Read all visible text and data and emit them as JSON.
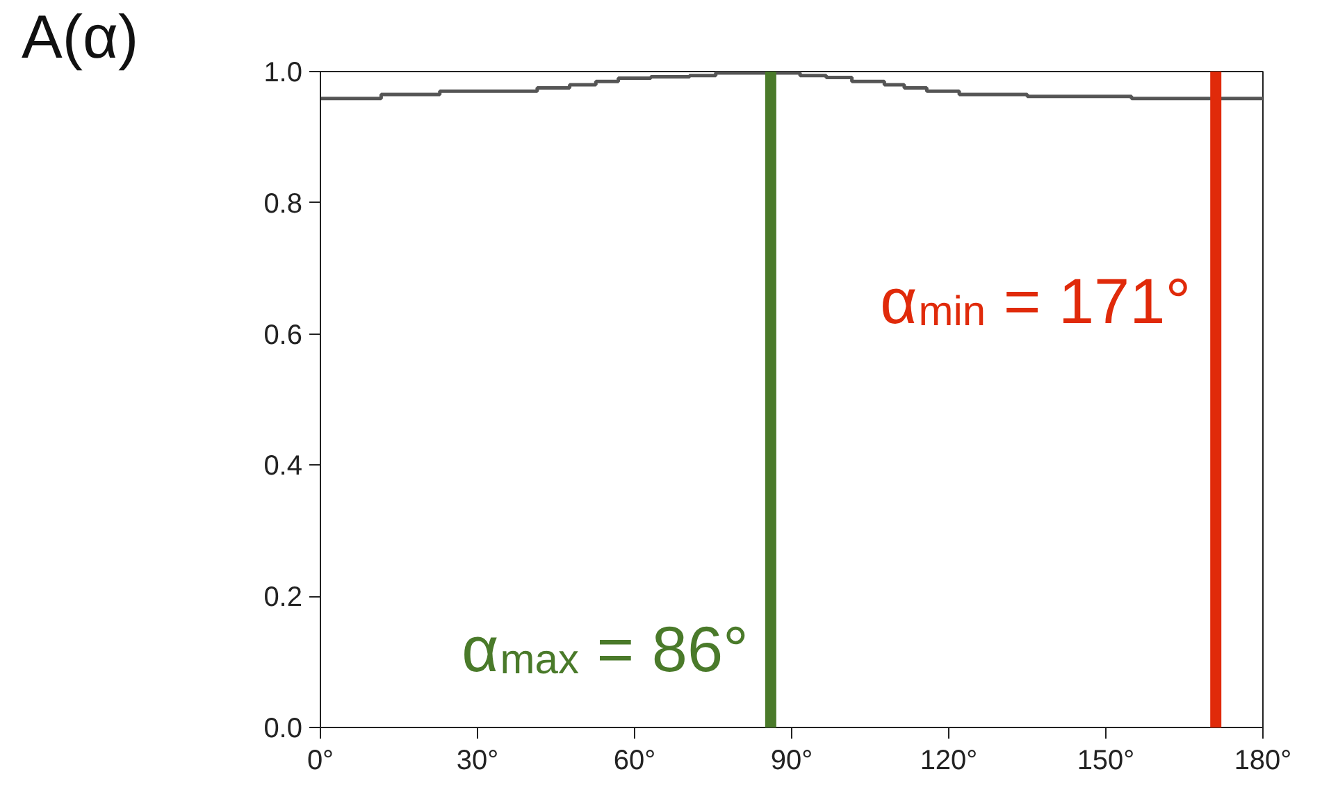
{
  "chart_data": {
    "type": "step",
    "ylabel": "A(α)",
    "x": [
      0,
      11.6,
      22.8,
      41.4,
      47.6,
      52.6,
      56.9,
      63.1,
      70.5,
      75.5,
      91.6,
      96.6,
      101.5,
      107.7,
      111.5,
      115.8,
      122,
      135,
      154.9,
      180
    ],
    "series": [
      {
        "color": "#555555",
        "values": [
          0.959,
          0.965,
          0.97,
          0.975,
          0.98,
          0.985,
          0.99,
          0.992,
          0.994,
          0.998,
          0.994,
          0.991,
          0.985,
          0.98,
          0.975,
          0.97,
          0.965,
          0.962,
          0.959,
          0.959
        ]
      }
    ],
    "xlim": [
      0,
      180
    ],
    "ylim": [
      0,
      1.0
    ],
    "xticks": [
      {
        "value": 0,
        "label": "0°"
      },
      {
        "value": 30,
        "label": "30°"
      },
      {
        "value": 60,
        "label": "60°"
      },
      {
        "value": 90,
        "label": "90°"
      },
      {
        "value": 120,
        "label": "120°"
      },
      {
        "value": 150,
        "label": "150°"
      },
      {
        "value": 180,
        "label": "180°"
      }
    ],
    "yticks": [
      {
        "value": 0,
        "label": "0.0"
      },
      {
        "value": 0.2,
        "label": "0.2"
      },
      {
        "value": 0.4,
        "label": "0.4"
      },
      {
        "value": 0.6,
        "label": "0.6"
      },
      {
        "value": 0.8,
        "label": "0.8"
      },
      {
        "value": 1.0,
        "label": "1.0"
      }
    ],
    "ref_lines": [
      {
        "axis": "x",
        "value": 86,
        "label": "α$_{max}$ = 86°",
        "color": "#4a7a2a"
      },
      {
        "axis": "x",
        "value": 171,
        "label": "α$_{min}$ = 171°",
        "color": "#e02a0a"
      }
    ],
    "grid": false
  }
}
